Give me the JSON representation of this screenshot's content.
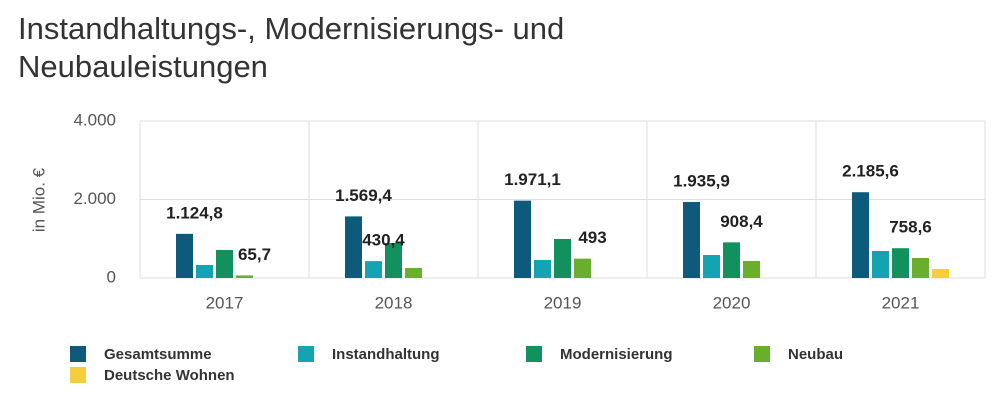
{
  "chart_data": {
    "type": "bar",
    "title": "Instandhaltungs-, Modernisierungs- und Neubauleistungen",
    "y_label": "in Mio. €",
    "categories": [
      "2017",
      "2018",
      "2019",
      "2020",
      "2021"
    ],
    "ylim": [
      0,
      4000
    ],
    "yticks": [
      0,
      {
        "value": 2000,
        "label": "2.000"
      },
      {
        "value": 4000,
        "label": "4.000"
      }
    ],
    "grid": true,
    "series": [
      {
        "name": "Gesamtsumme",
        "color": "#0d5a7a",
        "values": [
          1124.8,
          1569.4,
          1971.1,
          1935.9,
          2185.6
        ],
        "value_labels": [
          "1.124,8",
          "1.569,4",
          "1.971,1",
          "1.935,9",
          "2.185,6"
        ]
      },
      {
        "name": "Instandhaltung",
        "color": "#13a3b1",
        "values": [
          331,
          430.4,
          459,
          586,
          688
        ],
        "value_labels": [
          null,
          "430,4",
          null,
          null,
          null
        ]
      },
      {
        "name": "Modernisierung",
        "color": "#12905e",
        "values": [
          713,
          892,
          994,
          908.4,
          758.6
        ],
        "value_labels": [
          null,
          null,
          null,
          "908,4",
          "758,6"
        ]
      },
      {
        "name": "Neubau",
        "color": "#6aae2e",
        "values": [
          65.7,
          255,
          493,
          433,
          510
        ],
        "value_labels": [
          "65,7",
          null,
          "493",
          null,
          null
        ]
      },
      {
        "name": "Deutsche Wohnen",
        "color": "#f5cd3d",
        "values": [
          null,
          null,
          null,
          null,
          230
        ]
      }
    ]
  }
}
